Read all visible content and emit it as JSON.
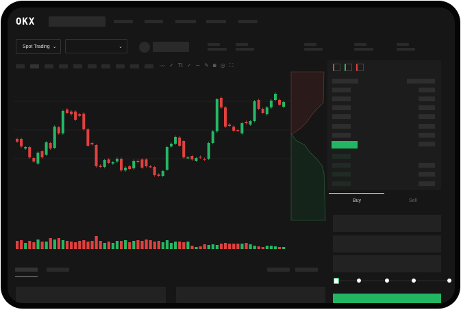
{
  "header": {
    "logo": "OKX",
    "nav_placeholders": 5
  },
  "market": {
    "mode_button": "Spot Trading",
    "pair_dropdown": "",
    "chevron": "chevron-down-icon"
  },
  "toolbar": {
    "icons": [
      "line-wave-icon",
      "check-icon",
      "text-icon",
      "check-icon",
      "curve-icon",
      "pencil-icon",
      "camera-icon",
      "target-icon",
      "fullscreen-icon"
    ]
  },
  "orderbook": {
    "view_icons": [
      "orderbook-both-icon",
      "orderbook-bids-icon",
      "orderbook-asks-icon"
    ]
  },
  "trade": {
    "tabs": [
      {
        "label": "Buy",
        "active": true
      },
      {
        "label": "Sell",
        "active": false
      }
    ],
    "slider_percent": 0,
    "slider_steps": 5
  },
  "colors": {
    "up": "#26b865",
    "down": "#e0413f",
    "bg": "#161616",
    "panel": "#1c1c1c"
  },
  "chart_data": {
    "type": "candlestick",
    "ylim": [
      40,
      170
    ],
    "candles": [
      [
        97,
        93
      ],
      [
        97,
        86
      ],
      [
        83,
        85
      ],
      [
        85,
        70
      ],
      [
        69,
        64
      ],
      [
        61,
        77
      ],
      [
        79,
        70
      ],
      [
        74,
        92
      ],
      [
        91,
        83
      ],
      [
        84,
        115
      ],
      [
        114,
        105
      ],
      [
        105,
        138
      ],
      [
        140,
        135
      ],
      [
        137,
        133
      ],
      [
        137,
        125
      ],
      [
        133,
        131
      ],
      [
        134,
        111
      ],
      [
        111,
        87
      ],
      [
        91,
        89
      ],
      [
        88,
        57
      ],
      [
        58,
        56
      ],
      [
        56,
        66
      ],
      [
        67,
        62
      ],
      [
        61,
        63
      ],
      [
        64,
        68
      ],
      [
        68,
        51
      ],
      [
        51,
        55
      ],
      [
        57,
        53
      ],
      [
        54,
        65
      ],
      [
        65,
        63
      ],
      [
        67,
        55
      ],
      [
        67,
        57
      ],
      [
        57,
        56
      ],
      [
        56,
        44
      ],
      [
        45,
        43
      ],
      [
        43,
        50
      ],
      [
        52,
        85
      ],
      [
        86,
        90
      ],
      [
        90,
        100
      ],
      [
        99,
        87
      ],
      [
        94,
        70
      ],
      [
        69,
        70
      ],
      [
        72,
        67
      ],
      [
        65,
        69
      ],
      [
        71,
        70
      ],
      [
        68,
        67
      ],
      [
        68,
        91
      ],
      [
        91,
        108
      ],
      [
        108,
        155
      ],
      [
        157,
        143
      ],
      [
        143,
        115
      ],
      [
        118,
        116
      ],
      [
        115,
        109
      ],
      [
        110,
        109
      ],
      [
        105,
        120
      ],
      [
        122,
        120
      ],
      [
        118,
        123
      ],
      [
        123,
        152
      ],
      [
        154,
        141
      ],
      [
        141,
        135
      ],
      [
        133,
        143
      ],
      [
        143,
        153
      ],
      [
        154,
        163
      ],
      [
        154,
        147
      ],
      [
        144,
        151
      ]
    ],
    "volume": [
      12,
      13,
      9,
      12,
      10,
      14,
      11,
      11,
      16,
      14,
      16,
      13,
      12,
      11,
      10,
      12,
      13,
      11,
      12,
      19,
      12,
      9,
      11,
      9,
      12,
      12,
      13,
      10,
      12,
      13,
      12,
      14,
      13,
      11,
      12,
      10,
      13,
      9,
      11,
      11,
      10,
      11,
      5,
      3,
      4,
      7,
      6,
      7,
      6,
      8,
      9,
      8,
      8,
      8,
      8,
      9,
      7,
      5,
      4,
      3,
      5,
      5,
      4,
      3,
      3
    ]
  }
}
